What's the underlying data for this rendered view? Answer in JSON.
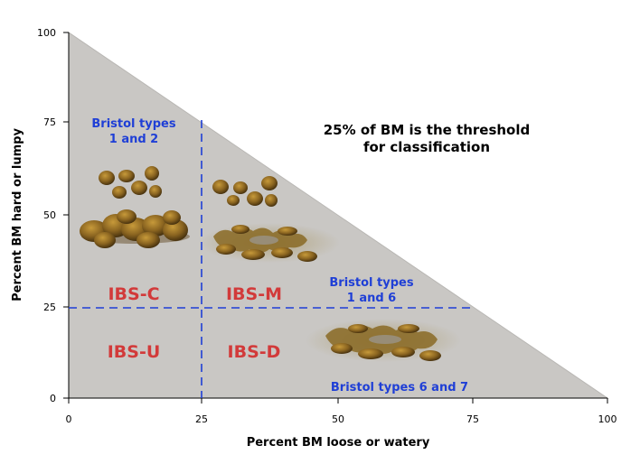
{
  "axes": {
    "x_label": "Percent BM loose or watery",
    "y_label": "Percent BM hard or lumpy",
    "x_ticks": [
      "0",
      "25",
      "50",
      "75",
      "100"
    ],
    "y_ticks": [
      "0",
      "25",
      "50",
      "75",
      "100"
    ]
  },
  "threshold": {
    "line1": "25% of BM is the threshold",
    "line2": "for classification"
  },
  "bristol": {
    "hard": {
      "line1": "Bristol types",
      "line2": "1 and 2"
    },
    "mixed": {
      "line1": "Bristol types",
      "line2": "1 and 6"
    },
    "loose": {
      "line1": "Bristol types 6 and 7"
    }
  },
  "regions": {
    "ibs_c": "IBS-C",
    "ibs_m": "IBS-M",
    "ibs_u": "IBS-U",
    "ibs_d": "IBS-D"
  },
  "colors": {
    "triangle_fill": "#c9c7c4",
    "dashed_lines": "#1f3fd6",
    "region_labels": "#d23a3a",
    "bristol_labels": "#1f3fd6",
    "stool_images": "#7a5a1a"
  }
}
